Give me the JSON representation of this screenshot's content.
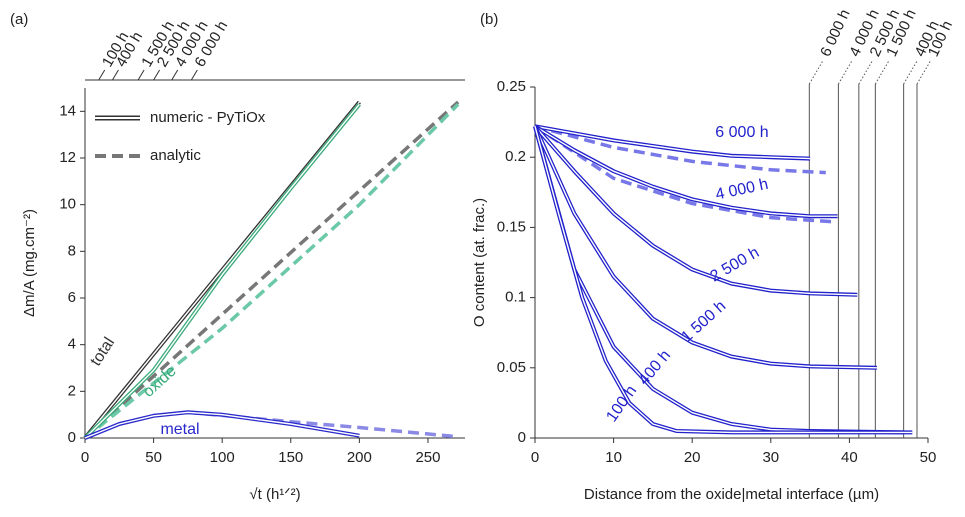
{
  "chart_data": [
    {
      "type": "line",
      "panel_label": "(a)",
      "x_label": "√t (h¹ᐟ²)",
      "y_label": "Δm/A (mg.cm⁻²)",
      "xlim": [
        0,
        277
      ],
      "ylim": [
        0,
        15
      ],
      "xticks": [
        0,
        50,
        100,
        150,
        200,
        250
      ],
      "yticks": [
        0,
        2,
        4,
        6,
        8,
        10,
        12,
        14
      ],
      "top_ticks": [
        {
          "value": 10,
          "label": "100 h"
        },
        {
          "value": 20,
          "label": "400 h"
        },
        {
          "value": 38.7,
          "label": "1 500 h"
        },
        {
          "value": 50,
          "label": "2 500 h"
        },
        {
          "value": 63.2,
          "label": "4 000 h"
        },
        {
          "value": 77.5,
          "label": "6 000 h"
        }
      ],
      "legend": {
        "numeric": "numeric - PyTiOx",
        "analytic": "analytic"
      },
      "series": [
        {
          "name": "total",
          "color": "#333333",
          "x": [
            0,
            50,
            100,
            150,
            200
          ],
          "values": [
            0,
            3.6,
            7.2,
            10.8,
            14.4
          ],
          "analytic_color": "#777777",
          "analytic_x": [
            0,
            100,
            200,
            272
          ],
          "analytic_values": [
            0,
            5.3,
            10.6,
            14.4
          ]
        },
        {
          "name": "oxide",
          "color": "#3aaa7a",
          "x": [
            0,
            50,
            100,
            150,
            200
          ],
          "values": [
            0,
            2.9,
            7.0,
            10.7,
            14.3
          ],
          "analytic_color": "#6cc9a8",
          "analytic_x": [
            0,
            100,
            200,
            272
          ],
          "analytic_values": [
            0,
            4.7,
            10.0,
            14.3
          ]
        },
        {
          "name": "metal",
          "color": "#2a2acc",
          "x": [
            0,
            25,
            50,
            75,
            100,
            150,
            200
          ],
          "values": [
            0,
            0.6,
            0.95,
            1.1,
            1.0,
            0.6,
            0.1
          ],
          "analytic_color": "#8a8ae6",
          "analytic_x": [
            75,
            150,
            200,
            272
          ],
          "analytic_values": [
            1.1,
            0.7,
            0.45,
            0.05
          ]
        }
      ]
    },
    {
      "type": "line",
      "panel_label": "(b)",
      "x_label": "Distance from the oxide|metal interface (µm)",
      "y_label": "O content (at. frac.)",
      "xlim": [
        0,
        50
      ],
      "ylim": [
        0,
        0.25
      ],
      "xticks": [
        0,
        10,
        20,
        30,
        40,
        50
      ],
      "yticks": [
        0,
        0.05,
        0.1,
        0.15,
        0.2,
        0.25
      ],
      "interfaces": [
        {
          "value": 34.9,
          "label": "6 000 h"
        },
        {
          "value": 38.6,
          "label": "4 000 h"
        },
        {
          "value": 41.2,
          "label": "2 500 h"
        },
        {
          "value": 43.3,
          "label": "1 500 h"
        },
        {
          "value": 46.9,
          "label": "400 h"
        },
        {
          "value": 48.6,
          "label": "100 h"
        }
      ],
      "series": [
        {
          "name": "6 000 h",
          "color": "#2222cc",
          "x": [
            0,
            5,
            10,
            15,
            20,
            25,
            30,
            35
          ],
          "values": [
            0.222,
            0.217,
            0.212,
            0.208,
            0.204,
            0.201,
            0.2,
            0.199
          ],
          "analytic_color": "#7878e8",
          "analytic_x": [
            0,
            10,
            20,
            30,
            37
          ],
          "analytic_values": [
            0.222,
            0.207,
            0.197,
            0.191,
            0.189
          ]
        },
        {
          "name": "4 000 h",
          "color": "#2222cc",
          "x": [
            0,
            5,
            10,
            15,
            20,
            25,
            30,
            35,
            38.5
          ],
          "values": [
            0.222,
            0.205,
            0.19,
            0.179,
            0.17,
            0.164,
            0.16,
            0.158,
            0.158
          ],
          "analytic_color": "#7878e8",
          "analytic_x": [
            0,
            10,
            20,
            30,
            38
          ],
          "analytic_values": [
            0.222,
            0.185,
            0.167,
            0.157,
            0.154
          ]
        },
        {
          "name": "2 500 h",
          "color": "#2222cc",
          "x": [
            0,
            5,
            10,
            15,
            20,
            25,
            30,
            35,
            41
          ],
          "values": [
            0.222,
            0.19,
            0.16,
            0.137,
            0.12,
            0.11,
            0.105,
            0.103,
            0.102
          ]
        },
        {
          "name": "1 500 h",
          "color": "#2222cc",
          "x": [
            0,
            5,
            10,
            15,
            20,
            25,
            30,
            35,
            43.5
          ],
          "values": [
            0.222,
            0.16,
            0.115,
            0.085,
            0.068,
            0.058,
            0.053,
            0.051,
            0.05
          ]
        },
        {
          "name": "400 h",
          "color": "#2222cc",
          "x": [
            0,
            5,
            10,
            15,
            20,
            25,
            30,
            35,
            47
          ],
          "values": [
            0.222,
            0.12,
            0.065,
            0.035,
            0.018,
            0.01,
            0.006,
            0.005,
            0.004
          ]
        },
        {
          "name": "100 h",
          "color": "#2222cc",
          "x": [
            0,
            3,
            6,
            9,
            12,
            15,
            18,
            25,
            48
          ],
          "values": [
            0.222,
            0.16,
            0.1,
            0.055,
            0.025,
            0.01,
            0.005,
            0.004,
            0.004
          ]
        }
      ]
    }
  ]
}
